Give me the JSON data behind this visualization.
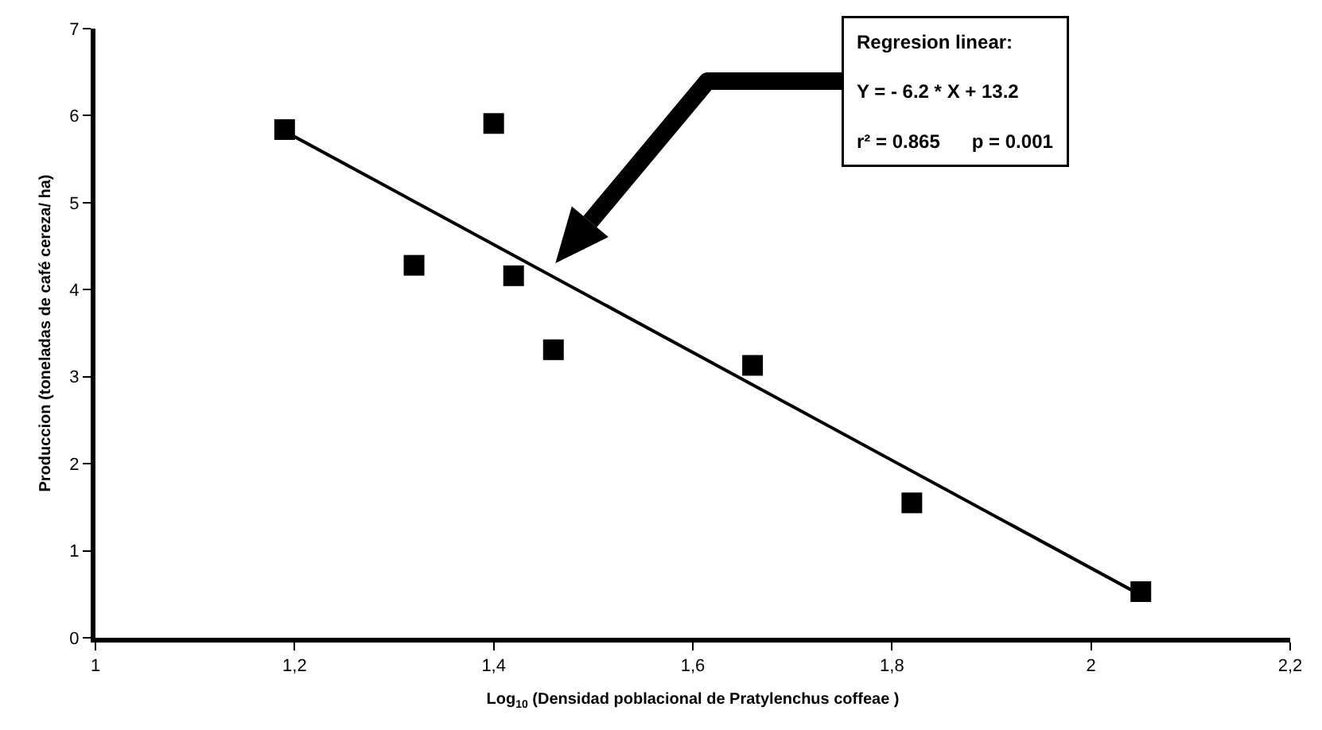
{
  "chart_data": {
    "type": "scatter",
    "xlabel": "Log$_{10}$ (Densidad poblacional de Pratylenchus coffeae )",
    "ylabel": "Produccion (toneladas de café cereza/ ha)",
    "xlim": [
      1,
      2.2
    ],
    "xticks": [
      1,
      {
        "value": 1.2,
        "label": "1,2"
      },
      {
        "value": 1.4,
        "label": "1,4"
      },
      {
        "value": 1.6,
        "label": "1,6"
      },
      {
        "value": 1.8,
        "label": "1,8"
      },
      2,
      {
        "value": 2.2,
        "label": "2,2"
      }
    ],
    "ylim": [
      0,
      7
    ],
    "yticks": [
      0,
      1,
      2,
      3,
      4,
      5,
      6,
      7
    ],
    "grid": false,
    "series": [
      {
        "type": "scatter",
        "marker": "square",
        "color": "#000000",
        "x": [
          1.19,
          1.32,
          1.4,
          1.42,
          1.46,
          1.66,
          1.82,
          2.05
        ],
        "values": [
          5.84,
          4.28,
          5.91,
          4.16,
          3.31,
          3.13,
          1.55,
          0.53
        ]
      },
      {
        "type": "line",
        "color": "#000000",
        "line_style": "solid",
        "x": [
          1.19,
          2.05
        ],
        "values": [
          5.82,
          0.49
        ]
      }
    ],
    "annotations": [
      "Regresion linear:",
      "Y = - 6.2 * X + 13.2",
      "r² = 0.865      p = 0.001"
    ]
  }
}
